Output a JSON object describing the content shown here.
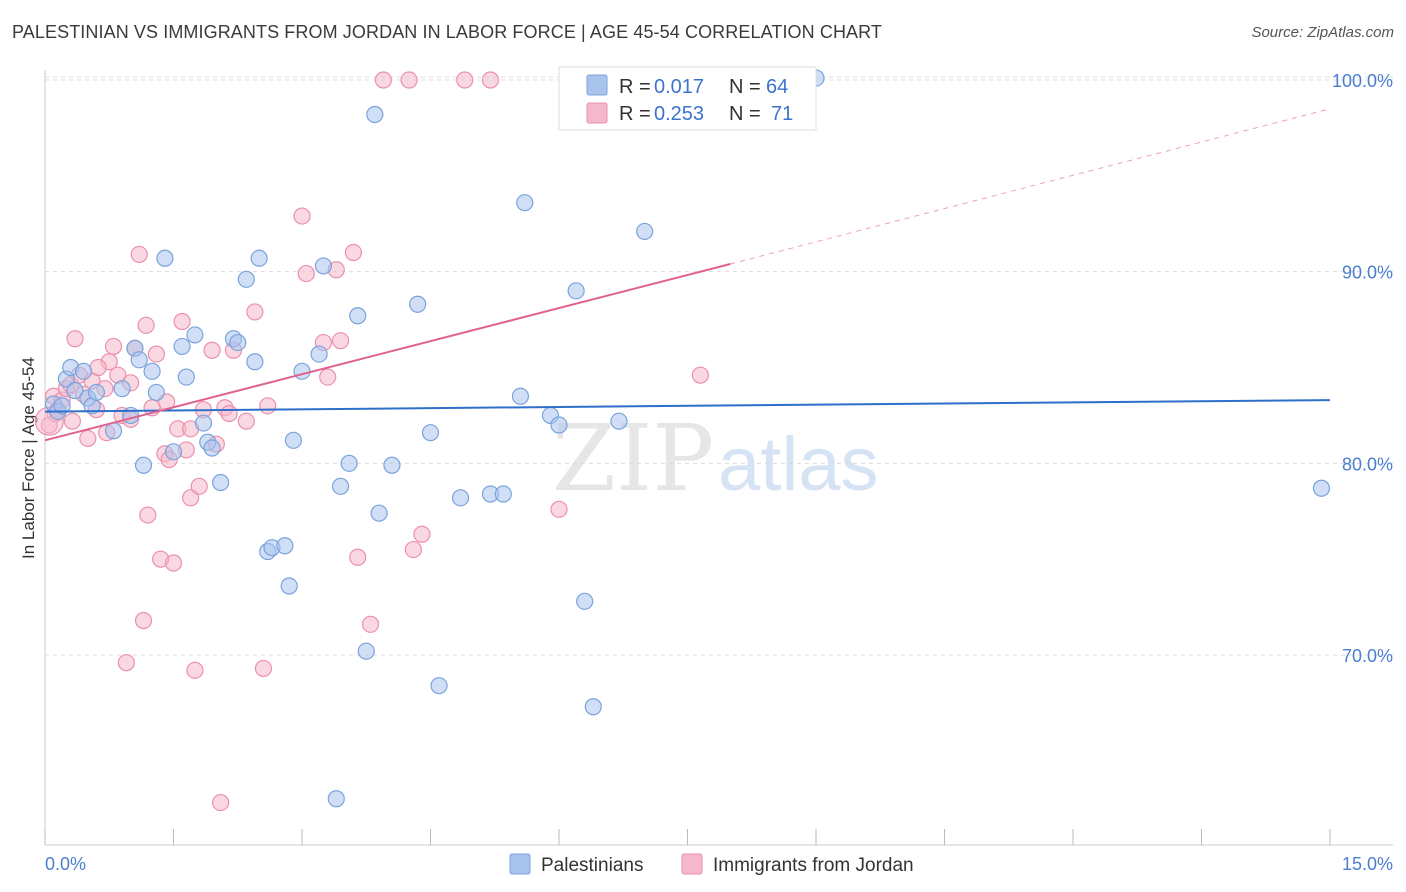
{
  "title": "PALESTINIAN VS IMMIGRANTS FROM JORDAN IN LABOR FORCE | AGE 45-54 CORRELATION CHART",
  "source": "Source: ZipAtlas.com",
  "watermark": {
    "zip": "ZIP",
    "atlas": "atlas"
  },
  "colors": {
    "blue_fill": "#a9c4ec",
    "blue_stroke": "#7aa3dd",
    "blue_line": "#2f6fcc",
    "pink_fill": "#f5b8cb",
    "pink_stroke": "#ec8fac",
    "pink_line": "#e0628e",
    "grid": "#dcdcdc",
    "tick_text": "#4a7fd0"
  },
  "legend": {
    "series1": {
      "r_label": "R =",
      "r_value": "0.017",
      "n_label": "N =",
      "n_value": "64"
    },
    "series2": {
      "r_label": "R =",
      "r_value": "0.253",
      "n_label": "N =",
      "n_value": "71"
    }
  },
  "chart_data": {
    "type": "scatter",
    "title": "PALESTINIAN VS IMMIGRANTS FROM JORDAN IN LABOR FORCE | AGE 45-54 CORRELATION CHART",
    "xlabel": "",
    "ylabel": "In Labor Force | Age 45-54",
    "xlim": [
      0,
      15
    ],
    "ylim": [
      60.5,
      101
    ],
    "x_tick_labels": [
      "0.0%",
      "15.0%"
    ],
    "y_ticks": [
      70,
      80,
      90,
      100
    ],
    "y_tick_labels": [
      "70.0%",
      "80.0%",
      "90.0%",
      "100.0%"
    ],
    "legend_position": "top-center",
    "series": [
      {
        "name": "Palestinians",
        "color": "#a9c4ec",
        "trend": {
          "x0": 0,
          "y0": 82.7,
          "x1": 15,
          "y1": 83.3
        },
        "points": [
          [
            0.1,
            83.1
          ],
          [
            0.15,
            82.7
          ],
          [
            0.2,
            83.0
          ],
          [
            0.25,
            84.4
          ],
          [
            0.3,
            85.0
          ],
          [
            0.35,
            83.8
          ],
          [
            0.45,
            84.8
          ],
          [
            0.5,
            83.4
          ],
          [
            0.55,
            83.0
          ],
          [
            0.6,
            83.7
          ],
          [
            0.8,
            81.7
          ],
          [
            0.9,
            83.9
          ],
          [
            1.0,
            82.5
          ],
          [
            1.05,
            86.0
          ],
          [
            1.1,
            85.4
          ],
          [
            1.15,
            79.9
          ],
          [
            1.25,
            84.8
          ],
          [
            1.3,
            83.7
          ],
          [
            1.4,
            90.7
          ],
          [
            1.5,
            80.6
          ],
          [
            1.6,
            86.1
          ],
          [
            1.65,
            84.5
          ],
          [
            1.75,
            86.7
          ],
          [
            1.85,
            82.1
          ],
          [
            1.9,
            81.1
          ],
          [
            1.95,
            80.8
          ],
          [
            2.05,
            79.0
          ],
          [
            2.2,
            86.5
          ],
          [
            2.25,
            86.3
          ],
          [
            2.35,
            89.6
          ],
          [
            2.45,
            85.3
          ],
          [
            2.5,
            90.7
          ],
          [
            2.6,
            75.4
          ],
          [
            2.65,
            75.6
          ],
          [
            2.8,
            75.7
          ],
          [
            2.85,
            73.6
          ],
          [
            2.9,
            81.2
          ],
          [
            3.0,
            84.8
          ],
          [
            3.2,
            85.7
          ],
          [
            3.25,
            90.3
          ],
          [
            3.4,
            62.5
          ],
          [
            3.45,
            78.8
          ],
          [
            3.55,
            80.0
          ],
          [
            3.65,
            87.7
          ],
          [
            3.75,
            70.2
          ],
          [
            3.85,
            98.2
          ],
          [
            3.9,
            77.4
          ],
          [
            4.05,
            79.9
          ],
          [
            4.35,
            88.3
          ],
          [
            4.5,
            81.6
          ],
          [
            4.6,
            68.4
          ],
          [
            4.85,
            78.2
          ],
          [
            5.2,
            78.4
          ],
          [
            5.35,
            78.4
          ],
          [
            5.55,
            83.5
          ],
          [
            5.6,
            93.6
          ],
          [
            5.9,
            82.5
          ],
          [
            6.0,
            82.0
          ],
          [
            6.2,
            89.0
          ],
          [
            6.3,
            72.8
          ],
          [
            6.4,
            67.3
          ],
          [
            6.7,
            82.2
          ],
          [
            7.0,
            92.1
          ],
          [
            9.0,
            100.1
          ],
          [
            14.9,
            78.7
          ]
        ]
      },
      {
        "name": "Immigrants from Jordan",
        "color": "#f5b8cb",
        "trend": {
          "x0": 0,
          "y0": 81.2,
          "x1": 8.0,
          "y1": 90.4,
          "dashed_to_x": 15,
          "dashed_to_y": 98.5
        },
        "points": [
          [
            0.05,
            82.0
          ],
          [
            0.1,
            83.5
          ],
          [
            0.15,
            82.8
          ],
          [
            0.2,
            83.3
          ],
          [
            0.25,
            83.9
          ],
          [
            0.3,
            84.1
          ],
          [
            0.35,
            86.5
          ],
          [
            0.4,
            84.6
          ],
          [
            0.45,
            83.6
          ],
          [
            0.5,
            81.3
          ],
          [
            0.55,
            84.3
          ],
          [
            0.6,
            82.8
          ],
          [
            0.7,
            83.9
          ],
          [
            0.75,
            85.3
          ],
          [
            0.8,
            86.1
          ],
          [
            0.85,
            84.6
          ],
          [
            0.9,
            82.5
          ],
          [
            0.95,
            69.6
          ],
          [
            1.0,
            82.3
          ],
          [
            1.05,
            86.0
          ],
          [
            1.1,
            90.9
          ],
          [
            1.15,
            71.8
          ],
          [
            1.2,
            77.3
          ],
          [
            1.25,
            82.9
          ],
          [
            1.3,
            85.7
          ],
          [
            1.35,
            75.0
          ],
          [
            1.4,
            80.5
          ],
          [
            1.45,
            80.2
          ],
          [
            1.5,
            74.8
          ],
          [
            1.55,
            81.8
          ],
          [
            1.6,
            87.4
          ],
          [
            1.65,
            80.7
          ],
          [
            1.7,
            78.2
          ],
          [
            1.75,
            69.2
          ],
          [
            1.8,
            78.8
          ],
          [
            1.85,
            82.8
          ],
          [
            1.95,
            85.9
          ],
          [
            2.0,
            81.0
          ],
          [
            2.05,
            62.3
          ],
          [
            2.1,
            82.9
          ],
          [
            2.15,
            82.6
          ],
          [
            2.2,
            85.9
          ],
          [
            2.35,
            82.2
          ],
          [
            2.45,
            87.9
          ],
          [
            2.55,
            69.3
          ],
          [
            2.6,
            83.0
          ],
          [
            3.0,
            92.9
          ],
          [
            3.05,
            89.9
          ],
          [
            3.25,
            86.3
          ],
          [
            3.3,
            84.5
          ],
          [
            3.4,
            90.1
          ],
          [
            3.45,
            86.4
          ],
          [
            3.6,
            91.0
          ],
          [
            3.65,
            75.1
          ],
          [
            3.8,
            71.6
          ],
          [
            3.95,
            100.0
          ],
          [
            4.25,
            100.0
          ],
          [
            4.3,
            75.5
          ],
          [
            4.4,
            76.3
          ],
          [
            4.9,
            100.0
          ],
          [
            5.2,
            100.0
          ],
          [
            6.0,
            77.6
          ],
          [
            7.65,
            84.6
          ],
          [
            0.12,
            82.6
          ],
          [
            0.32,
            82.2
          ],
          [
            0.62,
            85.0
          ],
          [
            0.72,
            81.6
          ],
          [
            1.0,
            84.2
          ],
          [
            1.18,
            87.2
          ],
          [
            1.42,
            83.2
          ],
          [
            1.7,
            81.8
          ]
        ]
      }
    ]
  },
  "bottom_legend": {
    "series1_label": "Palestinians",
    "series2_label": "Immigrants from Jordan"
  }
}
